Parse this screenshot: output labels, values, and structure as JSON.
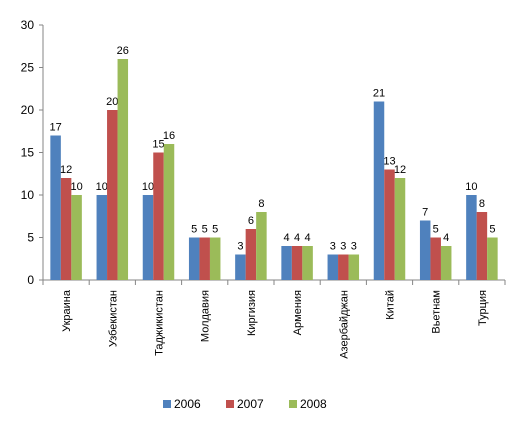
{
  "chart_data": {
    "type": "bar",
    "categories": [
      "Украина",
      "Узбекистан",
      "Таджикистан",
      "Молдавия",
      "Киргизия",
      "Армения",
      "Азербайджан",
      "Китай",
      "Вьетнам",
      "Турция"
    ],
    "series": [
      {
        "name": "2006",
        "color": "#4F81BD",
        "values": [
          17,
          10,
          10,
          5,
          3,
          4,
          3,
          21,
          7,
          10
        ]
      },
      {
        "name": "2007",
        "color": "#C0504D",
        "values": [
          12,
          20,
          15,
          5,
          6,
          4,
          3,
          13,
          5,
          8
        ]
      },
      {
        "name": "2008",
        "color": "#9BBB59",
        "values": [
          10,
          26,
          16,
          5,
          8,
          4,
          3,
          12,
          4,
          5
        ]
      }
    ],
    "y_ticks": [
      "0",
      "5",
      "10",
      "15",
      "20",
      "25",
      "30"
    ],
    "ylim": [
      0,
      30
    ],
    "grid": false,
    "data_labels": true,
    "legend_position": "bottom"
  }
}
